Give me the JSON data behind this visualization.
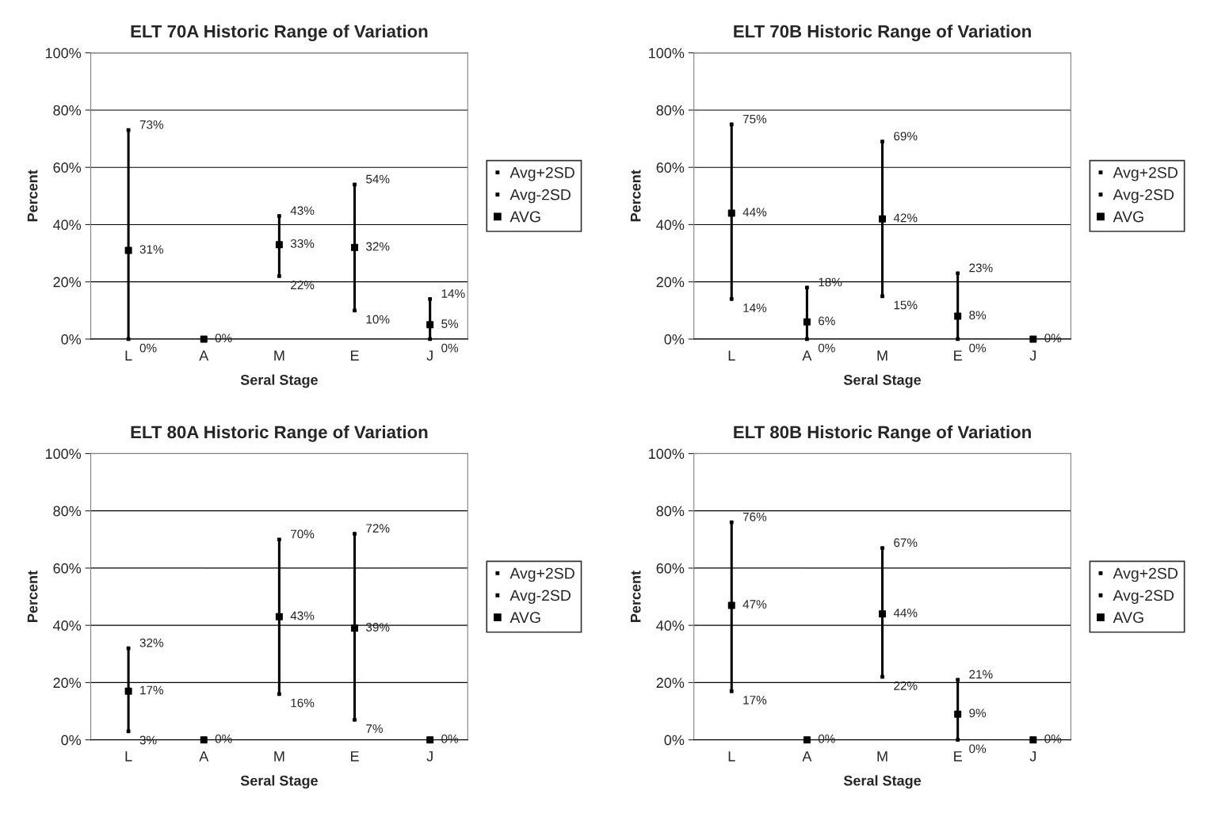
{
  "chart_data": [
    {
      "type": "scatter",
      "title": "ELT 70A Historic Range of Variation",
      "xlabel": "Seral Stage",
      "ylabel": "Percent",
      "categories": [
        "L",
        "A",
        "M",
        "E",
        "J"
      ],
      "ylim": [
        0,
        100
      ],
      "yticks": [
        {
          "value": 0,
          "label": "0%"
        },
        {
          "value": 20,
          "label": "20%"
        },
        {
          "value": 40,
          "label": "40%"
        },
        {
          "value": 60,
          "label": "60%"
        },
        {
          "value": 80,
          "label": "80%"
        },
        {
          "value": 100,
          "label": "100%"
        }
      ],
      "grid": "y",
      "legend": "right",
      "marker": "square",
      "series": [
        {
          "name": "Avg+2SD",
          "color": "#000000",
          "values": [
            73,
            null,
            43,
            54,
            14
          ],
          "value_labels": [
            "73%",
            null,
            "43%",
            "54%",
            "14%"
          ]
        },
        {
          "name": "Avg-2SD",
          "color": "#000000",
          "values": [
            0,
            null,
            22,
            10,
            0
          ],
          "value_labels": [
            "0%",
            null,
            "22%",
            "10%",
            "0%"
          ]
        },
        {
          "name": "AVG",
          "color": "#000000",
          "values": [
            31,
            0,
            33,
            32,
            5
          ],
          "value_labels": [
            "31%",
            "0%",
            "33%",
            "32%",
            "5%"
          ]
        }
      ]
    },
    {
      "type": "scatter",
      "title": "ELT 70B Historic Range of Variation",
      "xlabel": "Seral Stage",
      "ylabel": "Percent",
      "categories": [
        "L",
        "A",
        "M",
        "E",
        "J"
      ],
      "ylim": [
        0,
        100
      ],
      "yticks": [
        {
          "value": 0,
          "label": "0%"
        },
        {
          "value": 20,
          "label": "20%"
        },
        {
          "value": 40,
          "label": "40%"
        },
        {
          "value": 60,
          "label": "60%"
        },
        {
          "value": 80,
          "label": "80%"
        },
        {
          "value": 100,
          "label": "100%"
        }
      ],
      "grid": "y",
      "legend": "right",
      "marker": "square",
      "series": [
        {
          "name": "Avg+2SD",
          "color": "#000000",
          "values": [
            75,
            18,
            69,
            23,
            null
          ],
          "value_labels": [
            "75%",
            "18%",
            "69%",
            "23%",
            null
          ]
        },
        {
          "name": "Avg-2SD",
          "color": "#000000",
          "values": [
            14,
            0,
            15,
            0,
            null
          ],
          "value_labels": [
            "14%",
            "0%",
            "15%",
            "0%",
            null
          ]
        },
        {
          "name": "AVG",
          "color": "#000000",
          "values": [
            44,
            6,
            42,
            8,
            0
          ],
          "value_labels": [
            "44%",
            "6%",
            "42%",
            "8%",
            "0%"
          ]
        }
      ]
    },
    {
      "type": "scatter",
      "title": "ELT 80A Historic Range of Variation",
      "xlabel": "Seral Stage",
      "ylabel": "Percent",
      "categories": [
        "L",
        "A",
        "M",
        "E",
        "J"
      ],
      "ylim": [
        0,
        100
      ],
      "yticks": [
        {
          "value": 0,
          "label": "0%"
        },
        {
          "value": 20,
          "label": "20%"
        },
        {
          "value": 40,
          "label": "40%"
        },
        {
          "value": 60,
          "label": "60%"
        },
        {
          "value": 80,
          "label": "80%"
        },
        {
          "value": 100,
          "label": "100%"
        }
      ],
      "grid": "y",
      "legend": "right",
      "marker": "square",
      "series": [
        {
          "name": "Avg+2SD",
          "color": "#000000",
          "values": [
            32,
            null,
            70,
            72,
            null
          ],
          "value_labels": [
            "32%",
            null,
            "70%",
            "72%",
            null
          ]
        },
        {
          "name": "Avg-2SD",
          "color": "#000000",
          "values": [
            3,
            null,
            16,
            7,
            null
          ],
          "value_labels": [
            "3%",
            null,
            "16%",
            "7%",
            null
          ]
        },
        {
          "name": "AVG",
          "color": "#000000",
          "values": [
            17,
            0,
            43,
            39,
            0
          ],
          "value_labels": [
            "17%",
            "0%",
            "43%",
            "39%",
            "0%"
          ]
        }
      ]
    },
    {
      "type": "scatter",
      "title": "ELT 80B Historic Range of Variation",
      "xlabel": "Seral Stage",
      "ylabel": "Percent",
      "categories": [
        "L",
        "A",
        "M",
        "E",
        "J"
      ],
      "ylim": [
        0,
        100
      ],
      "yticks": [
        {
          "value": 0,
          "label": "0%"
        },
        {
          "value": 20,
          "label": "20%"
        },
        {
          "value": 40,
          "label": "40%"
        },
        {
          "value": 60,
          "label": "60%"
        },
        {
          "value": 80,
          "label": "80%"
        },
        {
          "value": 100,
          "label": "100%"
        }
      ],
      "grid": "y",
      "legend": "right",
      "marker": "square",
      "series": [
        {
          "name": "Avg+2SD",
          "color": "#000000",
          "values": [
            76,
            null,
            67,
            21,
            null
          ],
          "value_labels": [
            "76%",
            null,
            "67%",
            "21%",
            null
          ]
        },
        {
          "name": "Avg-2SD",
          "color": "#000000",
          "values": [
            17,
            null,
            22,
            0,
            null
          ],
          "value_labels": [
            "17%",
            null,
            "22%",
            "0%",
            null
          ]
        },
        {
          "name": "AVG",
          "color": "#000000",
          "values": [
            47,
            0,
            44,
            9,
            0
          ],
          "value_labels": [
            "47%",
            "0%",
            "44%",
            "9%",
            "0%"
          ]
        }
      ]
    }
  ]
}
